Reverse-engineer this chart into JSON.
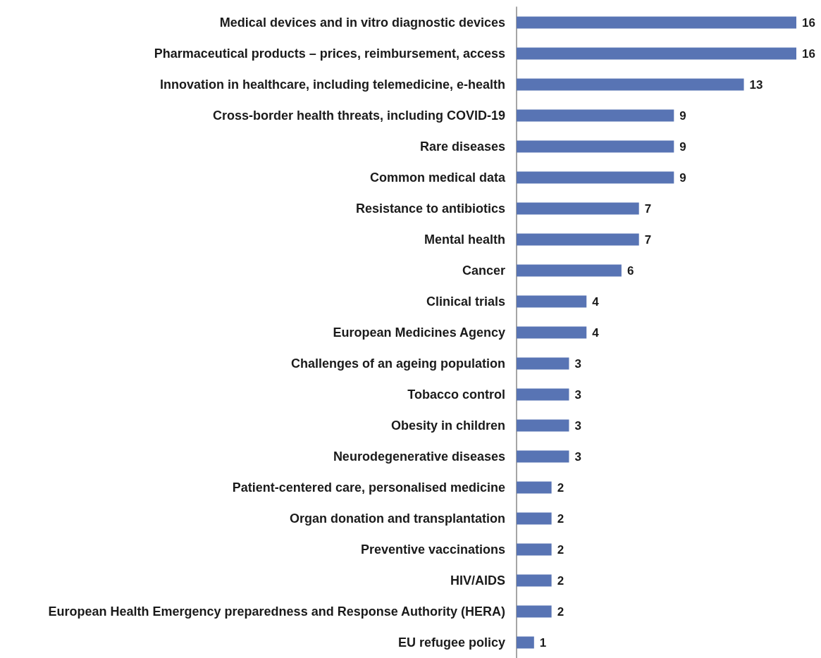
{
  "chart_data": {
    "type": "bar",
    "orientation": "horizontal",
    "categories": [
      "Medical devices and in vitro diagnostic devices",
      "Pharmaceutical products – prices, reimbursement, access",
      "Innovation in healthcare, including telemedicine, e-health",
      "Cross-border health threats, including COVID-19",
      "Rare diseases",
      "Common medical data",
      "Resistance to antibiotics",
      "Mental health",
      "Cancer",
      "Clinical trials",
      "European Medicines Agency",
      "Challenges of an ageing population",
      "Tobacco control",
      "Obesity in children",
      "Neurodegenerative diseases",
      "Patient-centered care, personalised medicine",
      "Organ donation and transplantation",
      "Preventive vaccinations",
      "HIV/AIDS",
      "European Health Emergency preparedness and Response Authority (HERA)",
      "EU refugee policy"
    ],
    "values": [
      16,
      16,
      13,
      9,
      9,
      9,
      7,
      7,
      6,
      4,
      4,
      3,
      3,
      3,
      3,
      2,
      2,
      2,
      2,
      2,
      1
    ],
    "color": "#5874b4",
    "xlim": [
      0,
      16
    ],
    "data_labels": true
  }
}
